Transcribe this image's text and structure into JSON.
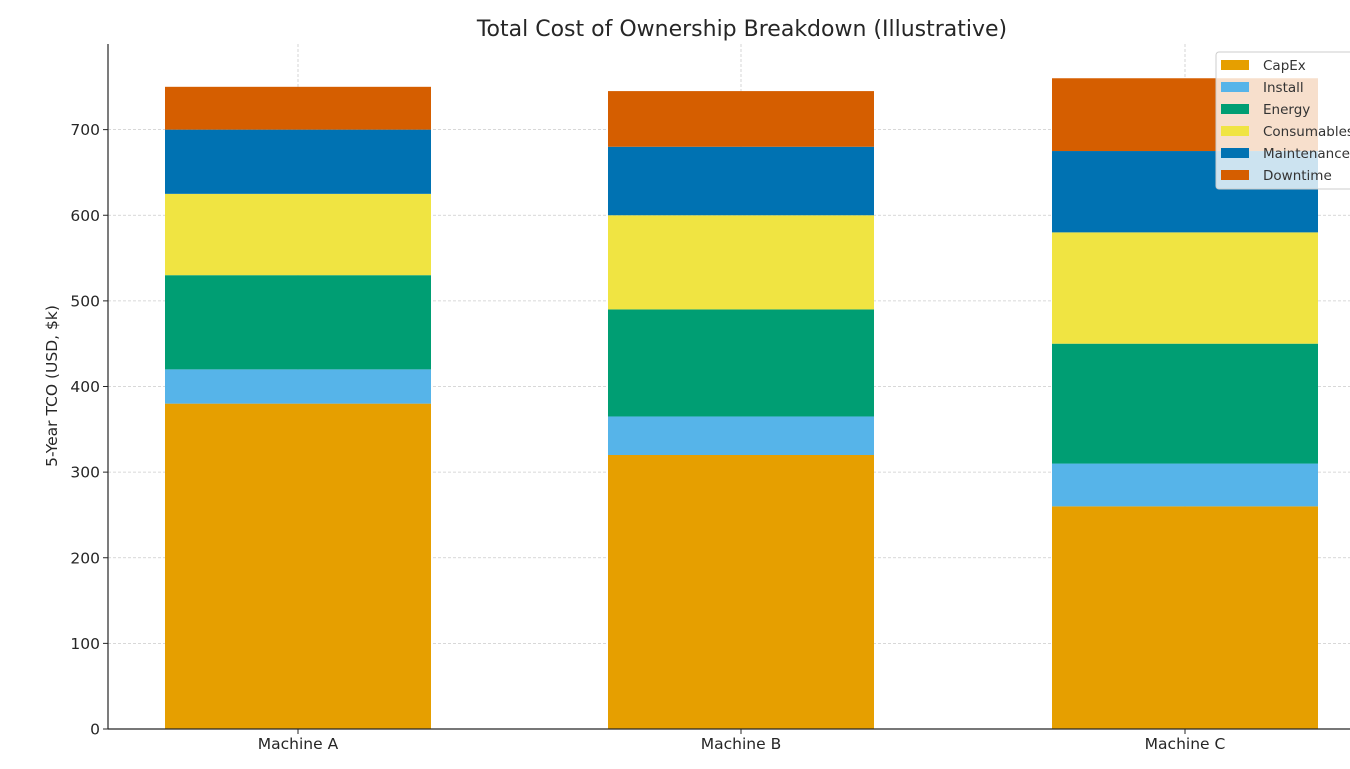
{
  "chart_data": {
    "type": "bar",
    "stacked": true,
    "title": "Total Cost of Ownership Breakdown (Illustrative)",
    "xlabel": "",
    "ylabel": "5-Year TCO (USD, $k)",
    "categories": [
      "Machine A",
      "Machine B",
      "Machine C"
    ],
    "ylim": [
      0,
      800
    ],
    "yticks": [
      0,
      100,
      200,
      300,
      400,
      500,
      600,
      700
    ],
    "grid": true,
    "legend_position": "top-right",
    "series": [
      {
        "name": "CapEx",
        "color": "#E69F00",
        "values": [
          380,
          320,
          260
        ]
      },
      {
        "name": "Install",
        "color": "#56B4E9",
        "values": [
          40,
          45,
          50
        ]
      },
      {
        "name": "Energy",
        "color": "#009E73",
        "values": [
          110,
          125,
          140
        ]
      },
      {
        "name": "Consumables",
        "color": "#F0E442",
        "values": [
          95,
          110,
          130
        ]
      },
      {
        "name": "Maintenance",
        "color": "#0072B2",
        "values": [
          75,
          80,
          95
        ]
      },
      {
        "name": "Downtime",
        "color": "#D55E00",
        "values": [
          50,
          65,
          85
        ]
      }
    ]
  }
}
